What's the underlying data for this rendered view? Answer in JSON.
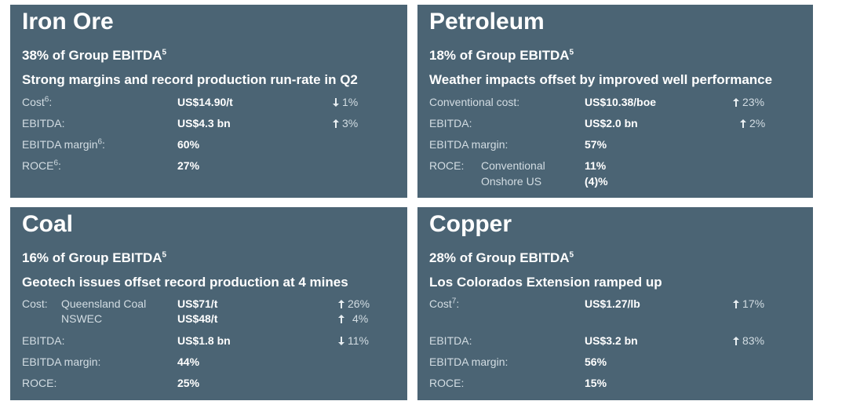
{
  "iron_ore": {
    "title": "Iron Ore",
    "share_text": "38% of Group EBITDA",
    "share_sup": "5",
    "headline": "Strong margins and record production run-rate in Q2",
    "cost_label": "Cost",
    "cost_sup": "6",
    "cost_value": "US$14.90/t",
    "cost_change": "1%",
    "cost_dir": "down",
    "ebitda_label": "EBITDA:",
    "ebitda_value": "US$4.3 bn",
    "ebitda_change": "3%",
    "ebitda_dir": "up",
    "margin_label": "EBITDA margin",
    "margin_sup": "6",
    "margin_value": "60%",
    "roce_label": "ROCE",
    "roce_sup": "6",
    "roce_value": "27%"
  },
  "petroleum": {
    "title": "Petroleum",
    "share_text": "18% of Group EBITDA",
    "share_sup": "5",
    "headline": "Weather impacts offset by improved well performance",
    "cost_label": "Conventional cost:",
    "cost_value": "US$10.38/boe",
    "cost_change": "23%",
    "cost_dir": "up",
    "ebitda_label": "EBITDA:",
    "ebitda_value": "US$2.0 bn",
    "ebitda_change": "2%",
    "ebitda_dir": "up",
    "margin_label": "EBITDA margin:",
    "margin_value": "57%",
    "roce_label": "ROCE:",
    "roce_sub1": "Conventional",
    "roce_val1": "11%",
    "roce_sub2": "Onshore US",
    "roce_val2": "(4)%"
  },
  "coal": {
    "title": "Coal",
    "share_text": "16% of Group EBITDA",
    "share_sup": "5",
    "headline": "Geotech issues offset record production at 4 mines",
    "cost_label": "Cost:",
    "cost_sub1": "Queensland Coal",
    "cost_val1": "US$71/t",
    "cost_chg1": "26%",
    "cost_dir1": "up",
    "cost_sub2": "NSWEC",
    "cost_val2": "US$48/t",
    "cost_chg2": "4%",
    "cost_dir2": "up",
    "ebitda_label": "EBITDA:",
    "ebitda_value": "US$1.8 bn",
    "ebitda_change": "11%",
    "ebitda_dir": "down",
    "margin_label": "EBITDA margin:",
    "margin_value": "44%",
    "roce_label": "ROCE:",
    "roce_value": "25%"
  },
  "copper": {
    "title": "Copper",
    "share_text": "28% of Group EBITDA",
    "share_sup": "5",
    "headline": "Los Colorados Extension ramped up",
    "cost_label": "Cost",
    "cost_sup": "7",
    "cost_value": "US$1.27/lb",
    "cost_change": "17%",
    "cost_dir": "up",
    "ebitda_label": "EBITDA:",
    "ebitda_value": "US$3.2 bn",
    "ebitda_change": "83%",
    "ebitda_dir": "up",
    "margin_label": "EBITDA margin:",
    "margin_value": "56%",
    "roce_label": "ROCE:",
    "roce_value": "15%"
  },
  "colors": {
    "panel": "#4b6474",
    "text": "#ffffff",
    "label": "#d3dde3"
  },
  "icons": {
    "up": "arrow-up-icon",
    "down": "arrow-down-icon"
  }
}
